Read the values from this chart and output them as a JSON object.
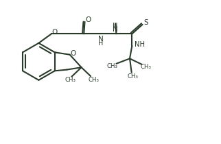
{
  "bg_color": "#ffffff",
  "line_color": "#2a3a2a",
  "line_width": 1.5,
  "figsize": [
    3.22,
    2.1
  ],
  "dpi": 100,
  "xlim": [
    0,
    9.5
  ],
  "ylim": [
    0,
    6.0
  ]
}
